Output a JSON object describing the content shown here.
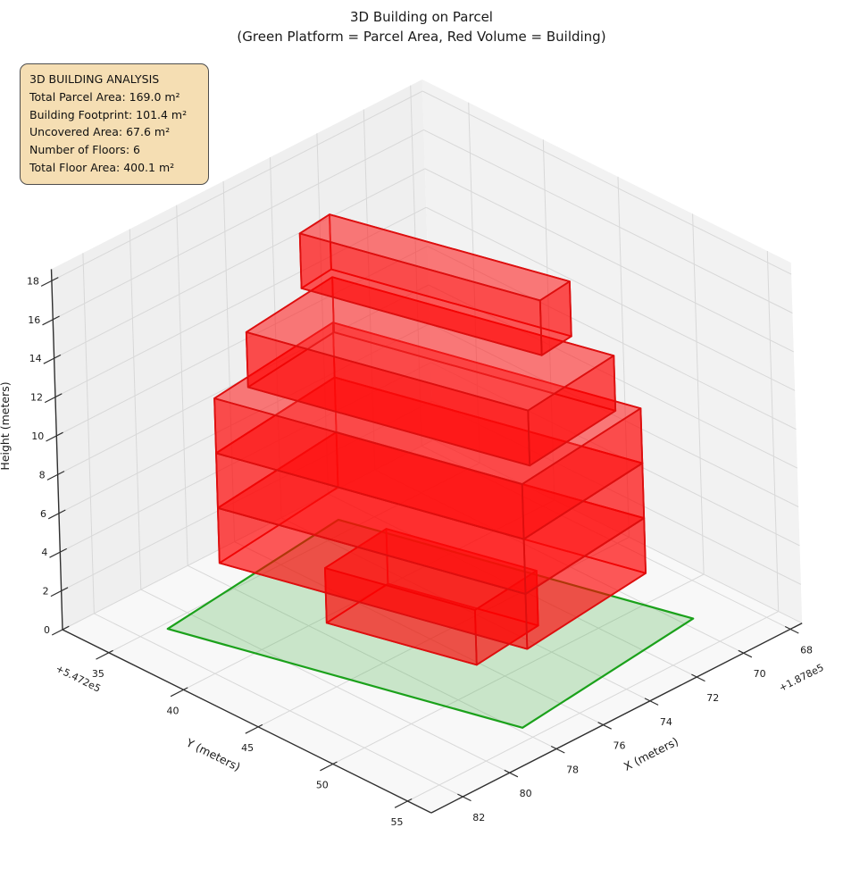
{
  "title": {
    "line1": "3D Building on Parcel",
    "line2": "(Green Platform = Parcel Area, Red Volume = Building)"
  },
  "info_box": {
    "title": "3D BUILDING ANALYSIS",
    "lines": [
      "Total Parcel Area: 169.0 m²",
      "Building Footprint: 101.4 m²",
      "Uncovered Area: 67.6 m²",
      "Number of Floors: 6",
      "Total Floor Area: 400.1 m²"
    ],
    "bg_color": "#f5deb3",
    "border_color": "#4d4d4d"
  },
  "chart_data": {
    "type": "3d-building-plot",
    "title": "3D Building on Parcel",
    "subtitle": "(Green Platform = Parcel Area, Red Volume = Building)",
    "legend_note": "Green Platform = Parcel Area, Red Volume = Building",
    "axes": {
      "x": {
        "label": "X (meters)",
        "offset_text": "+1.878e5",
        "ticks": [
          68,
          70,
          72,
          74,
          76,
          78,
          80,
          82
        ],
        "min": 67.5,
        "max": 83.35
      },
      "y": {
        "label": "Y (meters)",
        "offset_text": "+5.472e5",
        "ticks": [
          35,
          40,
          45,
          50,
          55
        ],
        "min": 31.9,
        "max": 56.58
      },
      "z": {
        "label": "Height (meters)",
        "ticks": [
          0,
          2,
          4,
          6,
          8,
          10,
          12,
          14,
          16,
          18
        ],
        "min": 0,
        "max": 18.6
      }
    },
    "parcel": {
      "name": "parcel-platform",
      "area_m2": 169.0,
      "z": 0,
      "polygon": [
        [
          81.1,
          35.42
        ],
        [
          77.82,
          54.03
        ],
        [
          69.6,
          52.58
        ],
        [
          72.88,
          33.97
        ]
      ]
    },
    "building": {
      "footprint_m2": 101.4,
      "uncovered_m2": 67.6,
      "num_floors": 6,
      "total_floor_area_m2": 400.1,
      "floors": [
        {
          "name": "floor-1",
          "z0": 0.0,
          "z1": 2.83,
          "polygon": [
            [
              77.5,
              40.42
            ],
            [
              76.12,
              48.3
            ],
            [
              73.16,
              47.78
            ],
            [
              74.55,
              39.9
            ]
          ]
        },
        {
          "name": "floor-2",
          "z0": 2.83,
          "z1": 5.67,
          "polygon": [
            [
              79.51,
              36.51
            ],
            [
              76.67,
              52.66
            ],
            [
              70.96,
              51.65
            ],
            [
              73.8,
              35.5
            ]
          ]
        },
        {
          "name": "floor-3",
          "z0": 5.67,
          "z1": 8.5,
          "polygon": [
            [
              79.51,
              36.51
            ],
            [
              76.67,
              52.66
            ],
            [
              70.96,
              51.65
            ],
            [
              73.8,
              35.5
            ]
          ]
        },
        {
          "name": "floor-4",
          "z0": 8.5,
          "z1": 11.33,
          "polygon": [
            [
              79.51,
              36.51
            ],
            [
              76.67,
              52.66
            ],
            [
              70.96,
              51.65
            ],
            [
              73.8,
              35.5
            ]
          ]
        },
        {
          "name": "floor-5",
          "z0": 11.33,
          "z1": 14.17,
          "polygon": [
            [
              78.33,
              36.91
            ],
            [
              75.72,
              51.68
            ],
            [
              71.59,
              50.95
            ],
            [
              74.19,
              36.18
            ]
          ]
        },
        {
          "name": "floor-6",
          "z0": 14.17,
          "z1": 17.0,
          "polygon": [
            [
              75.31,
              35.87
            ],
            [
              73.09,
              48.48
            ],
            [
              71.66,
              48.22
            ],
            [
              73.88,
              35.62
            ]
          ]
        }
      ]
    },
    "colors": {
      "pane_left": "#efefef",
      "pane_right": "#f2f2f2",
      "pane_floor": "#f8f8f8",
      "grid": "#d8d8d8",
      "spine": "#2f2f2f",
      "tick_label": "#1a1a1a",
      "red_edge": "#dd0f0f",
      "red_face_front": "rgba(255,0,0,0.55)",
      "red_face_back": "rgba(255,0,0,0.30)",
      "red_face_top": "rgba(255,45,45,0.40)",
      "red_face_bottom": "rgba(255,0,0,0.22)",
      "parcel_fill": "rgba(80,180,80,0.28)",
      "parcel_edge": "#1ba11b"
    }
  }
}
